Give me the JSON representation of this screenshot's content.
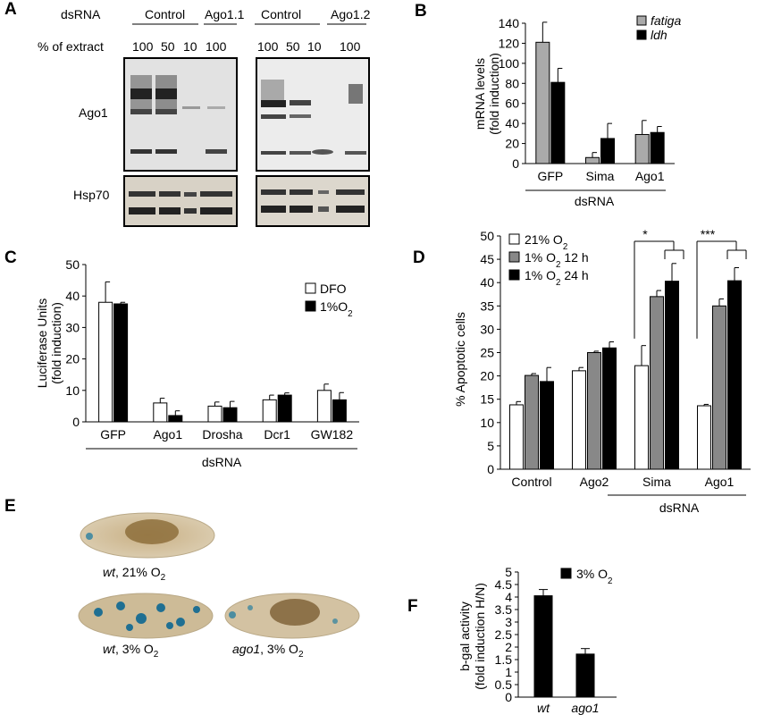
{
  "panels": {
    "A": {
      "letter": "A",
      "dsrna_label": "dsRNA",
      "group_left": [
        "Control",
        "Ago1.1"
      ],
      "group_right": [
        "Control",
        "Ago1.2"
      ],
      "extract_label": "% of extract",
      "lanes_left": [
        "100",
        "50",
        "10",
        "100"
      ],
      "lanes_right": [
        "100",
        "50",
        "10",
        "100"
      ],
      "row_labels": [
        "Ago1",
        "Hsp70"
      ]
    },
    "E": {
      "letter": "E",
      "captions": [
        {
          "italic": "wt",
          "rest": ", 21% O",
          "sub": "2"
        },
        {
          "italic": "wt",
          "rest": ", 3% O",
          "sub": "2"
        },
        {
          "italic": "ago1",
          "rest": ", 3% O",
          "sub": "2"
        }
      ]
    }
  },
  "chart_data": [
    {
      "panel": "B",
      "type": "bar",
      "categories": [
        "GFP",
        "Sima",
        "Ago1"
      ],
      "series": [
        {
          "name": "fatiga",
          "values": [
            121,
            6,
            29
          ],
          "errors": [
            20,
            5,
            14
          ],
          "color": "#aaaaaa"
        },
        {
          "name": "ldh",
          "values": [
            81,
            25,
            31
          ],
          "errors": [
            14,
            15,
            6
          ],
          "color": "#000000"
        }
      ],
      "ylabel": [
        "mRNA levels",
        "(fold induction)"
      ],
      "xlabel": "dsRNA",
      "yticks": [
        "0",
        "20",
        "40",
        "60",
        "80",
        "100",
        "120",
        "140"
      ],
      "ylim": [
        0,
        140
      ],
      "legend": "top-right"
    },
    {
      "panel": "C",
      "type": "bar",
      "categories": [
        "GFP",
        "Ago1",
        "Drosha",
        "Dcr1",
        "GW182"
      ],
      "series": [
        {
          "name": "DFO",
          "values": [
            38,
            6,
            5,
            7,
            10
          ],
          "errors": [
            6.5,
            1.5,
            1.3,
            1.5,
            2
          ],
          "color": "#ffffff"
        },
        {
          "name": "1%O2",
          "values": [
            37.5,
            2,
            4.5,
            8.5,
            7
          ],
          "errors": [
            0.5,
            1.5,
            2,
            0.7,
            2.3
          ],
          "color": "#000000"
        }
      ],
      "ylabel": [
        "Luciferase Units",
        "(fold induction)"
      ],
      "xlabel": "dsRNA",
      "yticks": [
        "0",
        "10",
        "20",
        "30",
        "40",
        "50"
      ],
      "ylim": [
        0,
        50
      ],
      "legend": "top-right",
      "legend_text": [
        {
          "main": "DFO",
          "sub": ""
        },
        {
          "main": "1%O",
          "sub": "2"
        }
      ]
    },
    {
      "panel": "D",
      "type": "bar",
      "categories": [
        "Control",
        "Ago2",
        "Sima",
        "Ago1"
      ],
      "series": [
        {
          "name": "21% O2",
          "values": [
            13.8,
            21.1,
            22.2,
            13.6
          ],
          "errors": [
            0.7,
            0.7,
            4.3,
            0.3
          ],
          "color": "#ffffff"
        },
        {
          "name": "1% O2 12 h",
          "values": [
            20.1,
            25,
            37,
            35
          ],
          "errors": [
            0.4,
            0.3,
            1.3,
            1.5
          ],
          "color": "#888888"
        },
        {
          "name": "1% O2 24 h",
          "values": [
            18.8,
            26,
            40.3,
            40.4
          ],
          "errors": [
            3,
            1.3,
            3.8,
            2.8
          ],
          "color": "#000000"
        }
      ],
      "ylabel": "% Apoptotic cells",
      "xlabel": "dsRNA",
      "yticks": [
        "0",
        "5",
        "10",
        "15",
        "20",
        "25",
        "30",
        "35",
        "40",
        "45",
        "50"
      ],
      "ylim": [
        0,
        50
      ],
      "legend": "top-left",
      "legend_text": [
        {
          "main": "21% O",
          "sub": "2",
          "tail": ""
        },
        {
          "main": "1% O",
          "sub": "2",
          "tail": " 12 h"
        },
        {
          "main": "1% O",
          "sub": "2",
          "tail": " 24 h"
        }
      ],
      "significance": [
        {
          "category": "Sima",
          "label": "*"
        },
        {
          "category": "Ago1",
          "label": "***"
        }
      ]
    },
    {
      "panel": "F",
      "type": "bar",
      "categories": [
        "wt",
        "ago1"
      ],
      "series": [
        {
          "name": "3% O2",
          "values": [
            4.05,
            1.72
          ],
          "errors": [
            0.25,
            0.22
          ],
          "color": "#000000"
        }
      ],
      "ylabel": [
        "b-gal activity",
        "(fold induction H/N)"
      ],
      "yticks": [
        "0",
        "0.5",
        "1",
        "1.5",
        "2",
        "2.5",
        "3",
        "3.5",
        "4",
        "4.5",
        "5"
      ],
      "ylim": [
        0,
        5
      ],
      "legend": "top-right",
      "legend_text": [
        {
          "main": "3% O",
          "sub": "2"
        }
      ]
    }
  ]
}
